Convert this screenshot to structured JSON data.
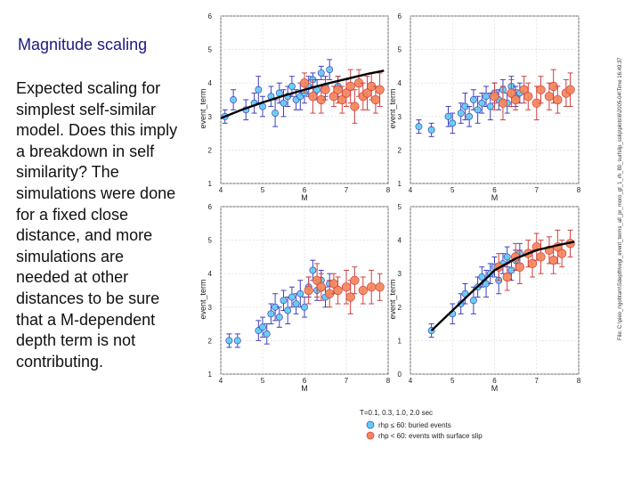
{
  "slide": {
    "title": "Magnitude scaling",
    "body": "Expected scaling for simplest self-similar model. Does this imply a breakdown in self similarity? The simulations were done for a fixed close distance, and more simulations are needed at other distances to be sure that a M-dependent depth term is not contributing.",
    "file_label": "File: C:\\pieo_r\\gohtam\\Sdepth\\regr_event_terms_all_pr_moro_gt_1_rh_80_surfslip_sslip\\plots\\6\\2005-04\\Time 16:49:37"
  },
  "legend": {
    "period": "T=0.1, 0.3, 1.0, 2.0 sec",
    "series_buried": "rhp ≤ 60: buried events",
    "series_surface": "rhp < 60: events with surface slip"
  },
  "colors": {
    "buried": "#5fd0f0",
    "buried_err": "#4040c0",
    "surface": "#f4875a",
    "surface_err": "#d04040",
    "curve": "#000000"
  },
  "chart_data": [
    {
      "type": "scatter",
      "panel": "T=0.1 sec",
      "xlabel": "M",
      "ylabel": "event_term",
      "xlim": [
        4,
        8
      ],
      "ylim": [
        1,
        6
      ],
      "xticks": [
        4,
        5,
        6,
        7,
        8
      ],
      "yticks": [
        1,
        2,
        3,
        4,
        5,
        6
      ],
      "curve": {
        "x": [
          4.0,
          4.5,
          5.0,
          5.5,
          6.0,
          6.5,
          7.0,
          7.5,
          7.9
        ],
        "y": [
          2.95,
          3.2,
          3.42,
          3.62,
          3.8,
          3.97,
          4.12,
          4.27,
          4.37
        ]
      },
      "series": [
        {
          "name": "buried",
          "points": [
            [
              4.1,
              3.0,
              0.2
            ],
            [
              4.3,
              3.5,
              0.3
            ],
            [
              4.6,
              3.2,
              0.3
            ],
            [
              4.8,
              3.4,
              0.3
            ],
            [
              4.9,
              3.8,
              0.4
            ],
            [
              5.0,
              3.3,
              0.3
            ],
            [
              5.2,
              3.6,
              0.3
            ],
            [
              5.3,
              3.1,
              0.4
            ],
            [
              5.4,
              3.7,
              0.3
            ],
            [
              5.5,
              3.4,
              0.4
            ],
            [
              5.6,
              3.6,
              0.3
            ],
            [
              5.7,
              3.9,
              0.3
            ],
            [
              5.8,
              3.5,
              0.3
            ],
            [
              5.9,
              3.6,
              0.4
            ],
            [
              6.0,
              3.7,
              0.3
            ],
            [
              6.1,
              3.9,
              0.3
            ],
            [
              6.2,
              4.1,
              0.2
            ],
            [
              6.3,
              3.8,
              0.3
            ],
            [
              6.4,
              4.3,
              0.2
            ],
            [
              6.5,
              3.9,
              0.3
            ],
            [
              6.6,
              4.4,
              0.3
            ],
            [
              6.8,
              3.9,
              0.3
            ]
          ]
        },
        {
          "name": "surface",
          "points": [
            [
              6.0,
              4.0,
              0.3
            ],
            [
              6.2,
              3.6,
              0.5
            ],
            [
              6.4,
              3.5,
              0.4
            ],
            [
              6.5,
              3.8,
              0.3
            ],
            [
              6.7,
              3.6,
              0.3
            ],
            [
              6.8,
              3.8,
              0.4
            ],
            [
              6.9,
              3.5,
              0.4
            ],
            [
              7.0,
              3.7,
              0.4
            ],
            [
              7.1,
              3.9,
              0.5
            ],
            [
              7.2,
              3.3,
              0.5
            ],
            [
              7.3,
              4.0,
              0.4
            ],
            [
              7.4,
              3.6,
              0.4
            ],
            [
              7.5,
              3.7,
              0.5
            ],
            [
              7.6,
              3.9,
              0.4
            ],
            [
              7.7,
              3.5,
              0.4
            ],
            [
              7.8,
              3.8,
              0.5
            ]
          ]
        }
      ]
    },
    {
      "type": "scatter",
      "panel": "T=0.3 sec",
      "xlabel": "M",
      "ylabel": "event_term",
      "xlim": [
        4,
        8
      ],
      "ylim": [
        1,
        6
      ],
      "xticks": [
        4,
        5,
        6,
        7,
        8
      ],
      "yticks": [
        1,
        2,
        3,
        4,
        5,
        6
      ],
      "curve": null,
      "series": [
        {
          "name": "buried",
          "points": [
            [
              4.2,
              2.7,
              0.2
            ],
            [
              4.5,
              2.6,
              0.2
            ],
            [
              4.9,
              3.0,
              0.3
            ],
            [
              5.0,
              2.8,
              0.3
            ],
            [
              5.2,
              3.1,
              0.3
            ],
            [
              5.3,
              3.3,
              0.4
            ],
            [
              5.4,
              3.0,
              0.3
            ],
            [
              5.5,
              3.5,
              0.3
            ],
            [
              5.6,
              3.2,
              0.4
            ],
            [
              5.7,
              3.4,
              0.3
            ],
            [
              5.8,
              3.6,
              0.3
            ],
            [
              5.9,
              3.3,
              0.4
            ],
            [
              6.0,
              3.7,
              0.3
            ],
            [
              6.1,
              3.5,
              0.3
            ],
            [
              6.2,
              3.8,
              0.3
            ],
            [
              6.3,
              3.4,
              0.3
            ],
            [
              6.4,
              3.9,
              0.3
            ],
            [
              6.5,
              3.6,
              0.3
            ],
            [
              6.6,
              3.7,
              0.3
            ]
          ]
        },
        {
          "name": "surface",
          "points": [
            [
              6.0,
              3.6,
              0.4
            ],
            [
              6.2,
              3.4,
              0.5
            ],
            [
              6.4,
              3.7,
              0.4
            ],
            [
              6.5,
              3.5,
              0.3
            ],
            [
              6.7,
              3.8,
              0.4
            ],
            [
              6.8,
              3.6,
              0.4
            ],
            [
              7.0,
              3.4,
              0.5
            ],
            [
              7.1,
              3.8,
              0.4
            ],
            [
              7.3,
              3.6,
              0.4
            ],
            [
              7.4,
              3.9,
              0.5
            ],
            [
              7.5,
              3.5,
              0.4
            ],
            [
              7.7,
              3.7,
              0.4
            ],
            [
              7.8,
              3.8,
              0.5
            ]
          ]
        }
      ]
    },
    {
      "type": "scatter",
      "panel": "T=1.0 sec",
      "xlabel": "M",
      "ylabel": "event_term",
      "xlim": [
        4,
        8
      ],
      "ylim": [
        1,
        6
      ],
      "xticks": [
        4,
        5,
        6,
        7,
        8
      ],
      "yticks": [
        1,
        2,
        3,
        4,
        5,
        6
      ],
      "curve": null,
      "series": [
        {
          "name": "buried",
          "points": [
            [
              4.2,
              2.0,
              0.2
            ],
            [
              4.4,
              2.0,
              0.2
            ],
            [
              4.9,
              2.3,
              0.3
            ],
            [
              5.0,
              2.4,
              0.3
            ],
            [
              5.1,
              2.2,
              0.3
            ],
            [
              5.2,
              2.8,
              0.3
            ],
            [
              5.3,
              3.0,
              0.4
            ],
            [
              5.4,
              2.7,
              0.3
            ],
            [
              5.5,
              3.2,
              0.3
            ],
            [
              5.6,
              2.9,
              0.4
            ],
            [
              5.7,
              3.3,
              0.3
            ],
            [
              5.8,
              3.1,
              0.3
            ],
            [
              5.9,
              3.4,
              0.4
            ],
            [
              6.0,
              3.0,
              0.3
            ],
            [
              6.1,
              3.6,
              0.3
            ],
            [
              6.2,
              4.1,
              0.3
            ],
            [
              6.3,
              3.5,
              0.3
            ],
            [
              6.4,
              3.8,
              0.3
            ],
            [
              6.5,
              3.3,
              0.3
            ],
            [
              6.6,
              3.7,
              0.3
            ]
          ]
        },
        {
          "name": "surface",
          "points": [
            [
              6.1,
              3.5,
              0.4
            ],
            [
              6.3,
              3.8,
              0.5
            ],
            [
              6.4,
              3.6,
              0.4
            ],
            [
              6.6,
              3.4,
              0.4
            ],
            [
              6.7,
              3.7,
              0.3
            ],
            [
              6.8,
              3.5,
              0.4
            ],
            [
              7.0,
              3.6,
              0.5
            ],
            [
              7.1,
              3.3,
              0.5
            ],
            [
              7.2,
              3.8,
              0.4
            ],
            [
              7.4,
              3.5,
              0.4
            ],
            [
              7.6,
              3.6,
              0.5
            ],
            [
              7.8,
              3.6,
              0.4
            ]
          ]
        }
      ]
    },
    {
      "type": "scatter",
      "panel": "T=2.0 sec",
      "xlabel": "M",
      "ylabel": "event_term",
      "xlim": [
        4,
        8
      ],
      "ylim": [
        0,
        5
      ],
      "xticks": [
        4,
        5,
        6,
        7,
        8
      ],
      "yticks": [
        0,
        1,
        2,
        3,
        4,
        5
      ],
      "curve": {
        "x": [
          4.5,
          5.0,
          5.5,
          5.8,
          6.0,
          6.5,
          7.0,
          7.5,
          7.9
        ],
        "y": [
          1.3,
          1.9,
          2.5,
          2.85,
          3.1,
          3.45,
          3.7,
          3.85,
          3.95
        ]
      },
      "series": [
        {
          "name": "buried",
          "points": [
            [
              4.5,
              1.3,
              0.2
            ],
            [
              5.0,
              1.8,
              0.3
            ],
            [
              5.2,
              2.1,
              0.3
            ],
            [
              5.3,
              2.4,
              0.3
            ],
            [
              5.5,
              2.2,
              0.4
            ],
            [
              5.6,
              2.6,
              0.3
            ],
            [
              5.7,
              2.9,
              0.3
            ],
            [
              5.8,
              2.7,
              0.4
            ],
            [
              5.9,
              3.0,
              0.3
            ],
            [
              6.0,
              3.2,
              0.3
            ],
            [
              6.1,
              2.8,
              0.4
            ],
            [
              6.2,
              3.3,
              0.3
            ],
            [
              6.3,
              3.5,
              0.3
            ],
            [
              6.4,
              3.1,
              0.3
            ],
            [
              6.5,
              3.4,
              0.3
            ],
            [
              6.6,
              3.6,
              0.3
            ]
          ]
        },
        {
          "name": "surface",
          "points": [
            [
              6.1,
              3.2,
              0.4
            ],
            [
              6.3,
              2.9,
              0.4
            ],
            [
              6.5,
              3.5,
              0.4
            ],
            [
              6.6,
              3.2,
              0.5
            ],
            [
              6.8,
              3.6,
              0.4
            ],
            [
              6.9,
              3.3,
              0.4
            ],
            [
              7.0,
              3.8,
              0.4
            ],
            [
              7.1,
              3.5,
              0.5
            ],
            [
              7.3,
              3.7,
              0.4
            ],
            [
              7.4,
              3.4,
              0.4
            ],
            [
              7.5,
              3.8,
              0.5
            ],
            [
              7.6,
              3.6,
              0.4
            ],
            [
              7.8,
              3.9,
              0.4
            ]
          ]
        }
      ]
    }
  ]
}
